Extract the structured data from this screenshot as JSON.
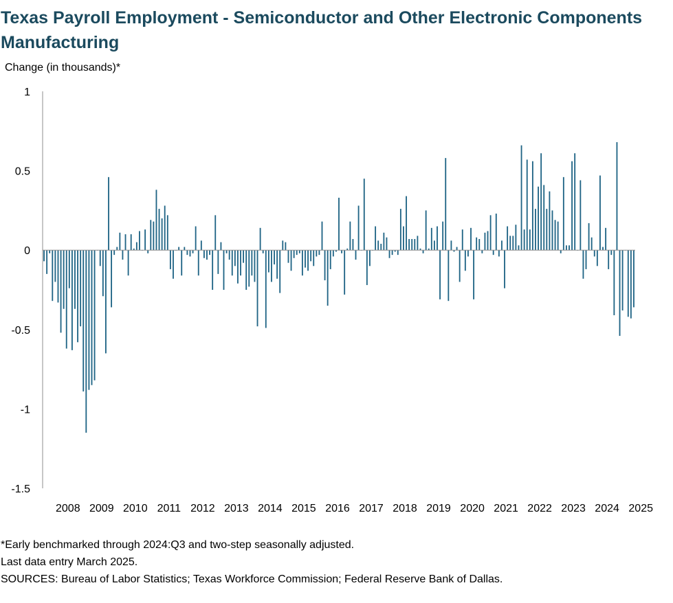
{
  "chart_data": {
    "type": "bar",
    "title": "Texas Payroll Employment - Semiconductor and Other Electronic Components Manufacturing",
    "ylabel": "Change (in thousands)*",
    "xlabel": "",
    "ylim": [
      -1.5,
      1
    ],
    "y_ticks": [
      "1",
      "0.5",
      "0",
      "-0.5",
      "-1",
      "-1.5"
    ],
    "x_tick_labels": [
      "2008",
      "2009",
      "2010",
      "2011",
      "2012",
      "2013",
      "2014",
      "2015",
      "2016",
      "2017",
      "2018",
      "2019",
      "2020",
      "2021",
      "2022",
      "2023",
      "2024",
      "2025"
    ],
    "frequency": "monthly",
    "start": "2007-10",
    "end": "2025-03",
    "color": "#1f6485",
    "grid": false,
    "legend": "none",
    "values": [
      -0.07,
      -0.15,
      -0.02,
      -0.32,
      -0.2,
      -0.33,
      -0.52,
      -0.37,
      -0.62,
      -0.24,
      -0.63,
      -0.37,
      -0.58,
      -0.48,
      -0.89,
      -1.15,
      -0.88,
      -0.85,
      -0.82,
      -0.0,
      -0.1,
      -0.29,
      -0.65,
      0.46,
      -0.36,
      -0.03,
      0.02,
      0.11,
      -0.06,
      0.1,
      -0.16,
      0.1,
      0.01,
      0.05,
      0.12,
      0.0,
      0.13,
      -0.02,
      0.19,
      0.18,
      0.38,
      0.26,
      0.2,
      0.28,
      0.22,
      -0.12,
      -0.18,
      -0.0,
      0.02,
      -0.16,
      0.02,
      -0.03,
      -0.04,
      -0.02,
      0.15,
      -0.16,
      0.06,
      -0.05,
      -0.06,
      -0.03,
      -0.25,
      0.22,
      -0.15,
      0.05,
      -0.25,
      -0.02,
      -0.06,
      -0.16,
      -0.1,
      -0.21,
      -0.16,
      -0.08,
      -0.25,
      -0.23,
      -0.16,
      -0.2,
      -0.48,
      0.14,
      -0.02,
      -0.49,
      -0.14,
      -0.2,
      -0.09,
      -0.18,
      -0.27,
      0.06,
      0.05,
      -0.08,
      -0.13,
      -0.05,
      -0.03,
      -0.02,
      -0.16,
      -0.11,
      -0.13,
      -0.07,
      -0.1,
      -0.04,
      -0.03,
      0.18,
      -0.19,
      -0.35,
      -0.12,
      -0.04,
      -0.01,
      0.33,
      -0.02,
      -0.28,
      0.01,
      0.18,
      0.07,
      -0.06,
      0.28,
      0.0,
      0.45,
      -0.22,
      -0.1,
      0.0,
      0.15,
      0.06,
      0.04,
      0.11,
      0.08,
      -0.05,
      -0.03,
      -0.01,
      -0.03,
      0.26,
      0.15,
      0.34,
      0.07,
      0.07,
      0.07,
      0.09,
      0.01,
      -0.02,
      0.25,
      0.01,
      0.14,
      0.06,
      0.15,
      -0.31,
      0.18,
      0.58,
      -0.32,
      0.06,
      -0.01,
      0.02,
      -0.2,
      0.13,
      -0.13,
      -0.04,
      0.14,
      -0.31,
      0.08,
      0.07,
      -0.02,
      0.11,
      0.12,
      0.22,
      -0.03,
      0.23,
      -0.04,
      0.06,
      -0.24,
      0.15,
      0.09,
      0.09,
      0.16,
      0.03,
      0.66,
      0.13,
      0.57,
      0.13,
      0.56,
      0.26,
      0.4,
      0.61,
      0.41,
      0.26,
      0.37,
      0.25,
      0.19,
      0.18,
      -0.02,
      0.46,
      0.03,
      0.03,
      0.56,
      0.61,
      -0.0,
      0.44,
      -0.18,
      -0.12,
      0.17,
      0.08,
      -0.04,
      -0.1,
      0.47,
      0.02,
      0.14,
      -0.12,
      -0.03,
      -0.41,
      0.68,
      -0.54,
      -0.38,
      -0.0,
      -0.42,
      -0.43,
      -0.36
    ]
  },
  "notes": {
    "line1": "*Early benchmarked through 2024:Q3 and two-step seasonally adjusted.",
    "line2": "Last data entry March 2025.",
    "line3": "SOURCES:  Bureau of Labor Statistics; Texas Workforce Commission;  Federal Reserve Bank of Dallas."
  }
}
